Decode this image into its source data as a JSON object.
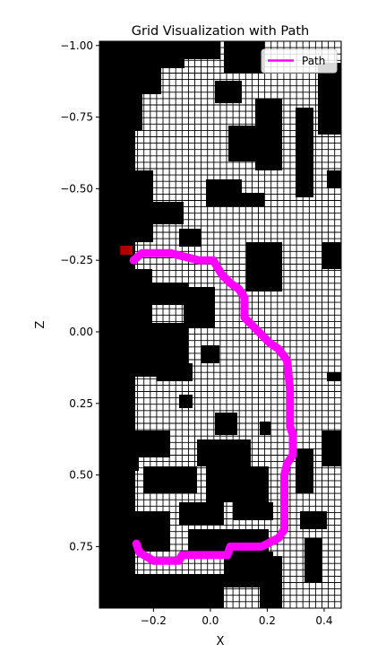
{
  "chart_data": {
    "type": "heatmap",
    "title": "Grid Visualization with Path",
    "xlabel": "X",
    "ylabel": "Z",
    "xlim": [
      -0.39,
      0.46
    ],
    "ylim": [
      0.965,
      -1.015
    ],
    "y_inverted": true,
    "xticks": [
      -0.2,
      0.0,
      0.2,
      0.4
    ],
    "xtick_labels": [
      "−0.2",
      "0.0",
      "0.2",
      "0.4"
    ],
    "yticks": [
      -1.0,
      -0.75,
      -0.5,
      -0.25,
      0.0,
      0.25,
      0.5,
      0.75
    ],
    "ytick_labels": [
      "−1.00",
      "−0.75",
      "−0.50",
      "−0.25",
      "0.00",
      "0.25",
      "0.50",
      "0.75"
    ],
    "grid_cells": "black = occupied, white = free (gridlines on free cells)",
    "legend": {
      "placement": "top-right",
      "entries": [
        {
          "label": "Path",
          "color": "#ff00ff"
        }
      ]
    },
    "start_marker": {
      "x": -0.295,
      "z": -0.285,
      "color": "#b00000"
    },
    "series": [
      {
        "name": "Path",
        "color": "#ff00ff",
        "x": [
          -0.27,
          -0.24,
          -0.14,
          -0.04,
          0.01,
          0.04,
          0.07,
          0.1,
          0.12,
          0.12,
          0.15,
          0.18,
          0.21,
          0.24,
          0.27,
          0.28,
          0.28,
          0.29,
          0.29,
          0.27,
          0.26,
          0.26,
          0.24,
          0.18,
          0.07,
          0.06,
          -0.1,
          -0.11,
          -0.2,
          -0.25,
          -0.26
        ],
        "z": [
          -0.25,
          -0.275,
          -0.275,
          -0.25,
          -0.25,
          -0.2,
          -0.17,
          -0.15,
          -0.12,
          -0.05,
          -0.02,
          0.01,
          0.04,
          0.06,
          0.1,
          0.2,
          0.33,
          0.36,
          0.43,
          0.46,
          0.5,
          0.69,
          0.72,
          0.75,
          0.75,
          0.78,
          0.78,
          0.8,
          0.8,
          0.77,
          0.74
        ]
      }
    ]
  }
}
